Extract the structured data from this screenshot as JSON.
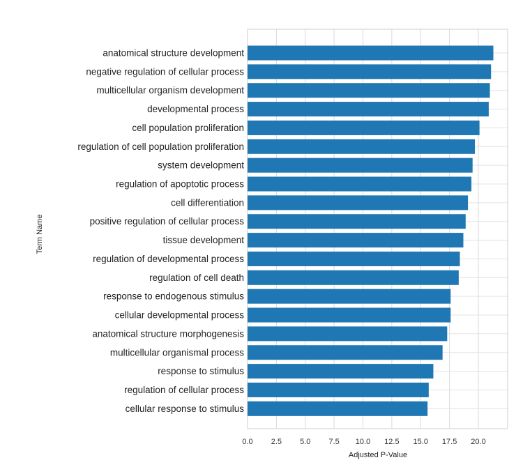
{
  "chart_data": {
    "type": "bar",
    "orientation": "horizontal",
    "xlabel": "Adjusted P-Value",
    "ylabel": "Term Name",
    "xlim": [
      0,
      22
    ],
    "xticks": [
      "0.0",
      "2.5",
      "5.0",
      "7.5",
      "10.0",
      "12.5",
      "15.0",
      "17.5",
      "20.0"
    ],
    "grid": true,
    "bar_color": "#1f77b4",
    "categories": [
      "anatomical structure development",
      "negative regulation of cellular process",
      "multicellular organism development",
      "developmental process",
      "cell population proliferation",
      "regulation of cell population proliferation",
      "system development",
      "regulation of apoptotic process",
      "cell differentiation",
      "positive regulation of cellular process",
      "tissue development",
      "regulation of developmental process",
      "regulation of cell death",
      "response to endogenous stimulus",
      "cellular developmental process",
      "anatomical structure morphogenesis",
      "multicellular organismal process",
      "response to stimulus",
      "regulation of cellular process",
      "cellular response to stimulus"
    ],
    "values": [
      21.3,
      21.1,
      21.0,
      20.9,
      20.1,
      19.7,
      19.5,
      19.4,
      19.1,
      18.9,
      18.7,
      18.4,
      18.3,
      17.6,
      17.6,
      17.3,
      16.9,
      16.1,
      15.7,
      15.6
    ]
  }
}
